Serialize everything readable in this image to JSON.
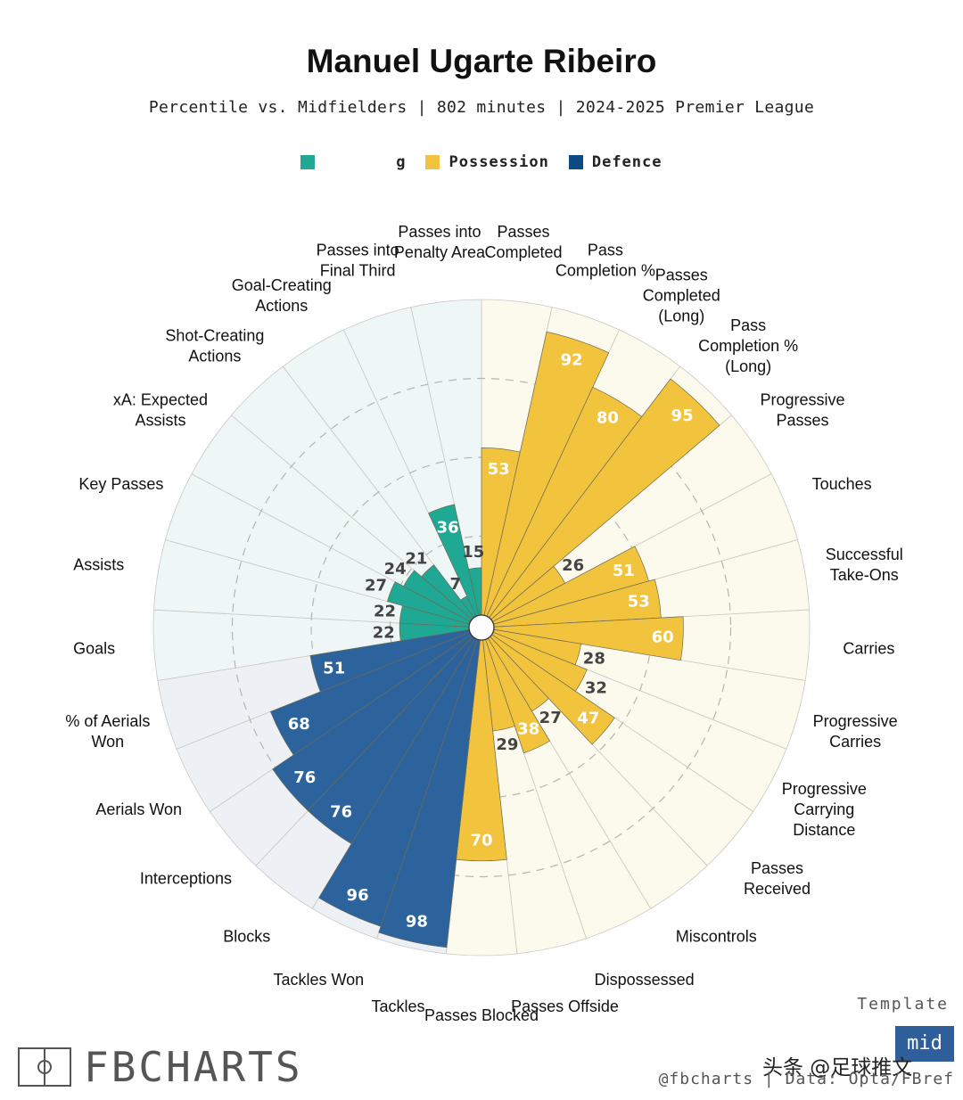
{
  "chart_data": {
    "type": "radial-bar",
    "title": "Manuel Ugarte Ribeiro",
    "subtitle": "Percentile vs. Midfielders | 802 minutes | 2024-2025 Premier League",
    "rlim": [
      0,
      100
    ],
    "legend": [
      {
        "name": "g",
        "color": "#1fa995",
        "bg": "#eef7f5"
      },
      {
        "name": "Possession",
        "color": "#f2c33d",
        "bg": "#fcfaec"
      },
      {
        "name": "Defence",
        "color": "#2d639c",
        "bg": "#edf1f5"
      }
    ],
    "metrics": [
      {
        "label": "Passes Completed",
        "value": 53,
        "group": 1
      },
      {
        "label": "Pass Completion %",
        "value": 92,
        "group": 1
      },
      {
        "label": "Passes Completed (Long)",
        "value": 80,
        "group": 1
      },
      {
        "label": "Pass Completion % (Long)",
        "value": 95,
        "group": 1
      },
      {
        "label": "Progressive Passes",
        "value": 26,
        "group": 1
      },
      {
        "label": "Touches",
        "value": 51,
        "group": 1
      },
      {
        "label": "Successful Take-Ons",
        "value": 53,
        "group": 1
      },
      {
        "label": "Carries",
        "value": 60,
        "group": 1
      },
      {
        "label": "Progressive Carries",
        "value": 28,
        "group": 1
      },
      {
        "label": "Progressive Carrying Distance",
        "value": 32,
        "group": 1
      },
      {
        "label": "Passes Received",
        "value": 47,
        "group": 1
      },
      {
        "label": "Miscontrols",
        "value": 27,
        "group": 1
      },
      {
        "label": "Dispossessed",
        "value": 38,
        "group": 1
      },
      {
        "label": "Passes Offside",
        "value": 29,
        "group": 1
      },
      {
        "label": "Passes Blocked",
        "value": 70,
        "group": 1
      },
      {
        "label": "Tackles",
        "value": 98,
        "group": 2
      },
      {
        "label": "Tackles Won",
        "value": 96,
        "group": 2
      },
      {
        "label": "Blocks",
        "value": 76,
        "group": 2
      },
      {
        "label": "Interceptions",
        "value": 76,
        "group": 2
      },
      {
        "label": "Aerials Won",
        "value": 68,
        "group": 2
      },
      {
        "label": "% of Aerials Won",
        "value": 51,
        "group": 2
      },
      {
        "label": "Goals",
        "value": 22,
        "group": 0
      },
      {
        "label": "Assists",
        "value": 22,
        "group": 0
      },
      {
        "label": "Key Passes",
        "value": 27,
        "group": 0
      },
      {
        "label": "xA: Expected Assists",
        "value": 24,
        "group": 0
      },
      {
        "label": "Shot-Creating Actions",
        "value": 21,
        "group": 0
      },
      {
        "label": "Goal-Creating Actions",
        "value": 7,
        "group": 0
      },
      {
        "label": "Passes into Final Third",
        "value": 36,
        "group": 0
      },
      {
        "label": "Passes into Penalty Area",
        "value": 15,
        "group": 0
      }
    ]
  },
  "branding": {
    "logo_text": "FBCHARTS",
    "template_label": "Template",
    "template_badge": "mid",
    "watermark": "头条 @足球推文",
    "credit": "@fbcharts | Data: Opta/FBref"
  }
}
